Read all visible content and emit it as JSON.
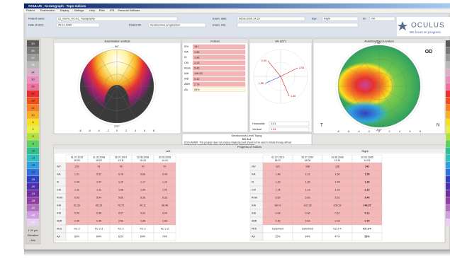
{
  "window": {
    "title": "OCULUS - Keratograph - Topo Indices",
    "menu": [
      "Patient",
      "Examination",
      "Display",
      "Settings",
      "Help",
      "Print",
      "IPS",
      "Personal Software"
    ]
  },
  "header": {
    "patient_name_label": "Patient name:",
    "patient_name": "21_Demo_KC-KL_Topography",
    "dob_label": "Date of birth:",
    "dob": "25.01.1983",
    "patient_id_label": "Patient ID:",
    "patient_id": "Keratoconus progression",
    "exam_date_label": "Exam. date:",
    "exam_date": "08.08.2005 14:25",
    "exam_info_label": "Exam. info:",
    "eye_label": "Eye:",
    "eye": "Right",
    "id_label": "ID:",
    "id": "OK"
  },
  "logo": {
    "name": "OCULUS",
    "tagline": "We focus on progress"
  },
  "color_scale": {
    "labels": [
      "50",
      "46",
      "42",
      "38",
      "34",
      "30",
      "26",
      "22",
      "18",
      "14",
      "10",
      "6",
      "2",
      "-2",
      "-6",
      "-10",
      "-14",
      "-18",
      "-22",
      "-26",
      "-30",
      "-34",
      "-38",
      "-42",
      "-46",
      "-50"
    ],
    "step": "1.00 µm",
    "mode": "Elevation",
    "ref": "Abs"
  },
  "elevation_map": {
    "title": "Examination vertical",
    "top": "90°",
    "bottom": "270°",
    "scale": [
      "-8",
      "-6",
      "-4",
      "-2",
      "0",
      "2",
      "4",
      "6",
      "8"
    ]
  },
  "indices": {
    "title": "Indices",
    "rows": [
      [
        "ISV",
        "141"
      ],
      [
        "IVA",
        "1.55"
      ],
      [
        "KI",
        "1.36"
      ],
      [
        "CKI",
        "1.13"
      ],
      [
        "Rmin",
        "5.40"
      ],
      [
        "IHA",
        "146.25"
      ],
      [
        "IHD",
        "0.12"
      ],
      [
        "ABR",
        "2.79"
      ],
      [
        "AA",
        "53%"
      ]
    ]
  },
  "ah": {
    "title": "AH (20°)",
    "points": [
      "2.90",
      "2.51",
      "1.30",
      "1.59"
    ],
    "horizontal_label": "Horizontal:",
    "horizontal": "1.01",
    "vertical_label": "Vertical:",
    "vertical": "1.34"
  },
  "axial_map": {
    "title": "Axial/Sagittal Curvature",
    "eye": "OD",
    "temporal": "T",
    "nasal": "N",
    "top": "90°",
    "bottom": "270°",
    "scale": [
      "-8",
      "-6",
      "-4",
      "-2",
      "0",
      "2",
      "4",
      "6",
      "8"
    ]
  },
  "keratoconus": {
    "title": "Keratoconus Level Topog",
    "level": "KC 3-4",
    "disclaimer": "DISCLAIMER: This program does not produce diagnoses and should not be used to dictate therapy without professional correlation with other clinical findings and diagnostic tests."
  },
  "progress": {
    "title": "Progress of Indices",
    "left": {
      "title": "Left",
      "dates": [
        "01.07.2010",
        "21.09.2008",
        "26.07.2007",
        "19.08.2006",
        "20.09.2005"
      ],
      "times": [
        "18:00",
        "18:02",
        "13:11",
        "15:15",
        "14:24"
      ],
      "rows": [
        {
          "label": "ISV",
          "values": [
            "109",
            "91",
            "78",
            "70",
            "57"
          ]
        },
        {
          "label": "IVA",
          "values": [
            "1.01",
            "0.92",
            "0.78",
            "0.66",
            "0.49"
          ]
        },
        {
          "label": "KI",
          "values": [
            "1.28",
            "1.22",
            "1.20",
            "1.17",
            "1.14"
          ]
        },
        {
          "label": "CKI",
          "values": [
            "1.11",
            "1.11",
            "1.08",
            "1.05",
            "1.03"
          ]
        },
        {
          "label": "Rmin",
          "values": [
            "5.05",
            "5.64",
            "5.65",
            "6.26",
            "6.33"
          ]
        },
        {
          "label": "IHA",
          "values": [
            "81.33",
            "66.15",
            "76.73",
            "40.11",
            "38.48"
          ]
        },
        {
          "label": "IHD",
          "values": [
            "0.09",
            "0.08",
            "0.07",
            "0.03",
            "0.04"
          ]
        },
        {
          "label": "ABR",
          "values": [
            "2.39",
            "2.35",
            "2.52",
            "1.85",
            "1.63"
          ]
        },
        {
          "label": "KKS",
          "values": [
            "KC 3",
            "KC 2-3",
            "KC 2",
            "KC 2",
            "KC 1-2"
          ]
        },
        {
          "label": "AA",
          "values": [
            "69%",
            "64%",
            "62%",
            "60%",
            "70%"
          ]
        }
      ]
    },
    "right": {
      "title": "Right",
      "dates": [
        "01.07.2010",
        "26.07.2007",
        "19.08.2006",
        "20.09.2005"
      ],
      "times": [
        "18:07",
        "18:00",
        "13:14",
        "14:03"
      ],
      "rows": [
        {
          "label": "ISV",
          "values": [
            "121",
            "108",
            "136",
            "141"
          ]
        },
        {
          "label": "IVA",
          "values": [
            "1.48",
            "1.31",
            "1.60",
            "1.55"
          ]
        },
        {
          "label": "KI",
          "values": [
            "1.29",
            "1.26",
            "1.28",
            "1.36"
          ]
        },
        {
          "label": "CKI",
          "values": [
            "1.14",
            "1.12",
            "1.15",
            "1.13"
          ]
        },
        {
          "label": "Rmin",
          "values": [
            "5.55",
            "5.93",
            "5.51",
            "5.40"
          ]
        },
        {
          "label": "IHA",
          "values": [
            "98.73",
            "102.38",
            "106.33",
            "146.25"
          ]
        },
        {
          "label": "IHD",
          "values": [
            "0.08",
            "0.06",
            "0.10",
            "0.12"
          ]
        },
        {
          "label": "ABR",
          "values": [
            "2.48",
            "2.61",
            "3.18",
            "2.79"
          ]
        },
        {
          "label": "KKS",
          "values": [
            "Deformed",
            "Deformed",
            "KC 3-4",
            "KC 3-4"
          ]
        },
        {
          "label": "AA",
          "values": [
            "25%",
            "34%",
            "47%",
            "53%"
          ]
        }
      ]
    }
  }
}
